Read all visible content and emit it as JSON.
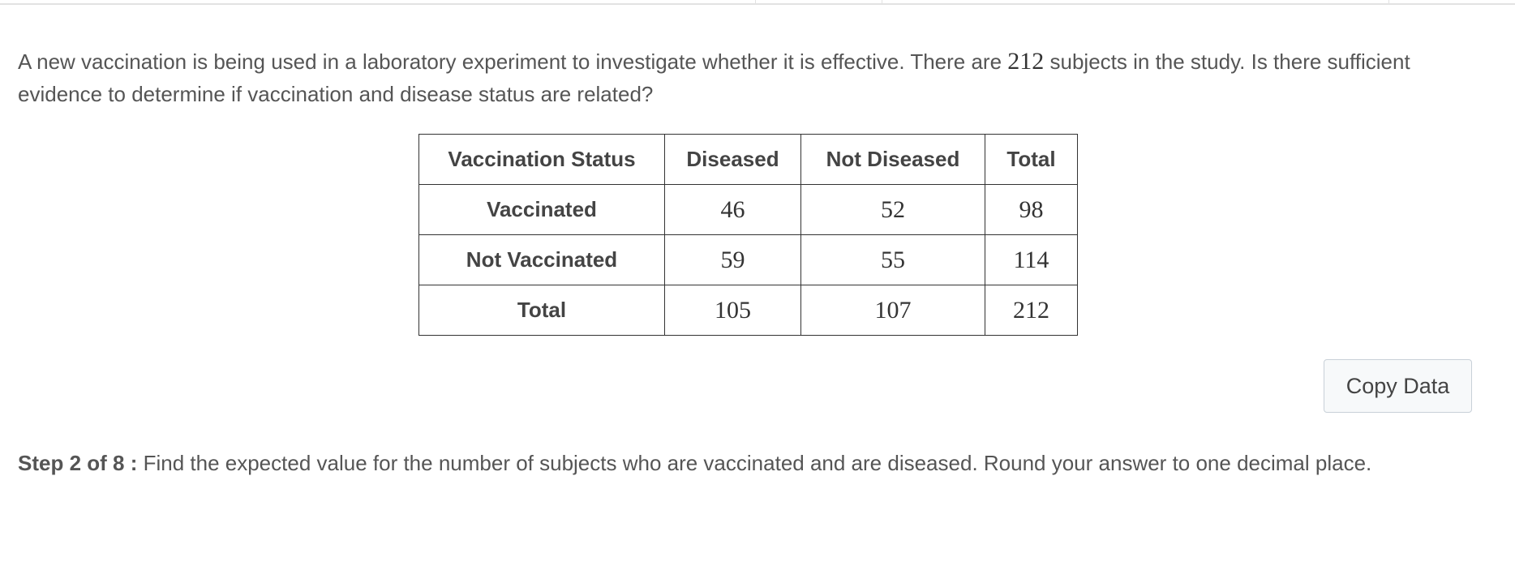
{
  "intro": {
    "before": "A new vaccination is being used in a laboratory experiment to investigate whether it is effective.  There are ",
    "number": "212",
    "after": " subjects in the study.  Is there sufficient evidence to determine if vaccination and disease status are related?"
  },
  "table": {
    "header": [
      "Vaccination Status",
      "Diseased",
      "Not Diseased",
      "Total"
    ],
    "rows": [
      [
        "Vaccinated",
        46,
        52,
        98
      ],
      [
        "Not Vaccinated",
        59,
        55,
        114
      ],
      [
        "Total",
        105,
        107,
        212
      ]
    ]
  },
  "button": "Copy Data",
  "step": {
    "label": "Step 2 of 8 :",
    "text": "Find the expected value for the number of subjects who are vaccinated and are diseased. Round your answer to one decimal place."
  }
}
